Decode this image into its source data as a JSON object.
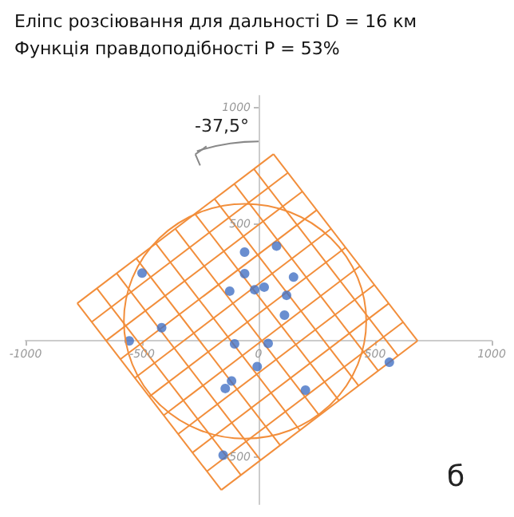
{
  "chart_data": {
    "type": "scatter",
    "title": "Еліпс розсіювання для дальності D = 16 км",
    "subtitle": "Функція правдоподібності P = 53%",
    "annotations": [
      "-37,5°",
      "б"
    ],
    "xlim": [
      -1000,
      1000
    ],
    "ylim": [
      -700,
      1050
    ],
    "xticks": [
      -1000,
      -500,
      0,
      500,
      1000
    ],
    "yticks": [
      -500,
      500,
      1000
    ],
    "marker": "circle",
    "series": [
      {
        "type": "line",
        "marker": "none",
        "color": "#f28e3b",
        "x": [
          -778,
          64
        ],
        "values": [
          161,
          800
        ]
      },
      {
        "type": "line",
        "marker": "none",
        "color": "#f28e3b",
        "x": [
          -716,
          126
        ],
        "values": [
          81,
          720
        ]
      },
      {
        "type": "line",
        "marker": "none",
        "color": "#f28e3b",
        "x": [
          -654,
          188
        ],
        "values": [
          1,
          640
        ]
      },
      {
        "type": "line",
        "marker": "none",
        "color": "#f28e3b",
        "x": [
          -593,
          249
        ],
        "values": [
          -79,
          560
        ]
      },
      {
        "type": "line",
        "marker": "none",
        "color": "#f28e3b",
        "x": [
          -531,
          311
        ],
        "values": [
          -159,
          480
        ]
      },
      {
        "type": "line",
        "marker": "none",
        "color": "#f28e3b",
        "x": [
          -469,
          373
        ],
        "values": [
          -239,
          400
        ]
      },
      {
        "type": "line",
        "marker": "none",
        "color": "#f28e3b",
        "x": [
          -407,
          435
        ],
        "values": [
          -319,
          320
        ]
      },
      {
        "type": "line",
        "marker": "none",
        "color": "#f28e3b",
        "x": [
          -345,
          497
        ],
        "values": [
          -399,
          240
        ]
      },
      {
        "type": "line",
        "marker": "none",
        "color": "#f28e3b",
        "x": [
          -284,
          558
        ],
        "values": [
          -479,
          160
        ]
      },
      {
        "type": "line",
        "marker": "none",
        "color": "#f28e3b",
        "x": [
          -222,
          620
        ],
        "values": [
          -559,
          80
        ]
      },
      {
        "type": "line",
        "marker": "none",
        "color": "#f28e3b",
        "x": [
          -160,
          682
        ],
        "values": [
          -639,
          0
        ]
      },
      {
        "type": "line",
        "marker": "none",
        "color": "#f28e3b",
        "x": [
          64,
          682
        ],
        "values": [
          800,
          0
        ]
      },
      {
        "type": "line",
        "marker": "none",
        "color": "#f28e3b",
        "x": [
          -20,
          598
        ],
        "values": [
          736,
          -64
        ]
      },
      {
        "type": "line",
        "marker": "none",
        "color": "#f28e3b",
        "x": [
          -104,
          513
        ],
        "values": [
          672,
          -128
        ]
      },
      {
        "type": "line",
        "marker": "none",
        "color": "#f28e3b",
        "x": [
          -189,
          429
        ],
        "values": [
          608,
          -192
        ]
      },
      {
        "type": "line",
        "marker": "none",
        "color": "#f28e3b",
        "x": [
          -273,
          345
        ],
        "values": [
          544,
          -256
        ]
      },
      {
        "type": "line",
        "marker": "none",
        "color": "#f28e3b",
        "x": [
          -357,
          261
        ],
        "values": [
          480,
          -320
        ]
      },
      {
        "type": "line",
        "marker": "none",
        "color": "#f28e3b",
        "x": [
          -441,
          177
        ],
        "values": [
          417,
          -383
        ]
      },
      {
        "type": "line",
        "marker": "none",
        "color": "#f28e3b",
        "x": [
          -525,
          92
        ],
        "values": [
          353,
          -447
        ]
      },
      {
        "type": "line",
        "marker": "none",
        "color": "#f28e3b",
        "x": [
          -609,
          8
        ],
        "values": [
          289,
          -511
        ]
      },
      {
        "type": "line",
        "marker": "none",
        "color": "#f28e3b",
        "x": [
          -694,
          -76
        ],
        "values": [
          225,
          -575
        ]
      },
      {
        "type": "line",
        "marker": "none",
        "color": "#f28e3b",
        "x": [
          -778,
          -160
        ],
        "values": [
          161,
          -639
        ]
      },
      {
        "color": "#4472c4",
        "x": [
          -500,
          -60,
          -60,
          -124,
          -17,
          -416,
          -555,
          -103,
          -6,
          -116,
          -143,
          -152,
          77,
          150,
          24,
          120,
          111,
          41,
          561,
          201
        ],
        "values": [
          290,
          380,
          288,
          213,
          219,
          56,
          0,
          -13,
          -110,
          -172,
          -204,
          -490,
          406,
          273,
          230,
          195,
          110,
          -11,
          -92,
          -211
        ]
      }
    ]
  }
}
